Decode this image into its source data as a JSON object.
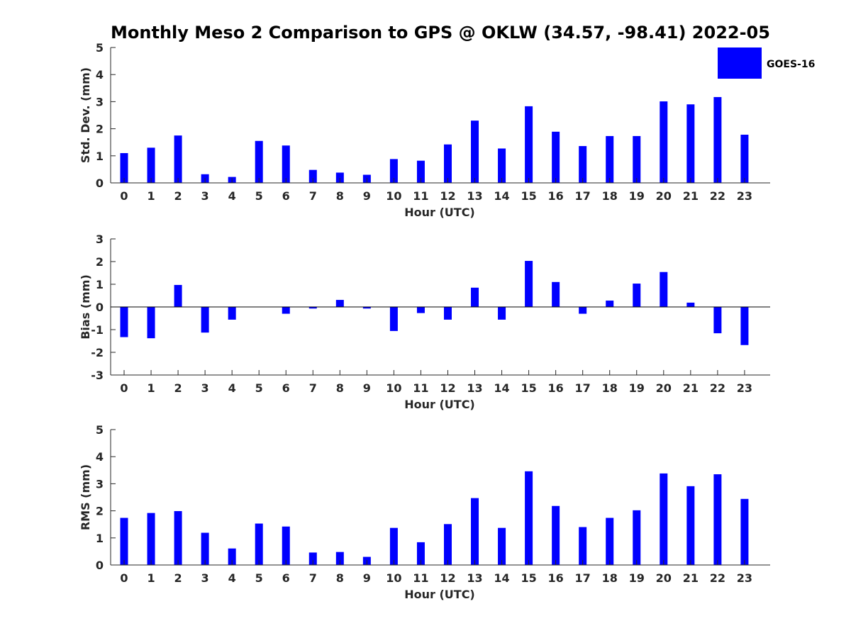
{
  "colors": {
    "bar": "#0000ff",
    "axis": "#262626",
    "background": "#ffffff"
  },
  "legend": {
    "label": "GOES-16"
  },
  "chart_data": [
    {
      "type": "bar",
      "title": "Monthly Meso 2 Comparison to GPS @ OKLW (34.57, -98.41) 2022-05",
      "xlabel": "Hour (UTC)",
      "ylabel": "Std. Dev. (mm)",
      "ylim": [
        0,
        5
      ],
      "yticks": [
        0,
        1,
        2,
        3,
        4,
        5
      ],
      "categories": [
        "0",
        "1",
        "2",
        "3",
        "4",
        "5",
        "6",
        "7",
        "8",
        "9",
        "10",
        "11",
        "12",
        "13",
        "14",
        "15",
        "16",
        "17",
        "18",
        "19",
        "20",
        "21",
        "22",
        "23"
      ],
      "series": [
        {
          "name": "GOES-16",
          "values": [
            1.1,
            1.3,
            1.75,
            0.32,
            0.22,
            1.55,
            1.38,
            0.48,
            0.38,
            0.3,
            0.88,
            0.82,
            1.42,
            2.3,
            1.27,
            2.83,
            1.89,
            1.36,
            1.73,
            1.73,
            3.01,
            2.9,
            3.17,
            1.78
          ]
        }
      ]
    },
    {
      "type": "bar",
      "title": "",
      "xlabel": "Hour (UTC)",
      "ylabel": "Bias (mm)",
      "ylim": [
        -3,
        3
      ],
      "yticks": [
        -3,
        -2,
        -1,
        0,
        1,
        2,
        3
      ],
      "zeroline": true,
      "categories": [
        "0",
        "1",
        "2",
        "3",
        "4",
        "5",
        "6",
        "7",
        "8",
        "9",
        "10",
        "11",
        "12",
        "13",
        "14",
        "15",
        "16",
        "17",
        "18",
        "19",
        "20",
        "21",
        "22",
        "23"
      ],
      "series": [
        {
          "name": "GOES-16",
          "values": [
            -1.33,
            -1.38,
            0.97,
            -1.13,
            -0.56,
            0.0,
            -0.3,
            -0.07,
            0.31,
            -0.07,
            -1.06,
            -0.27,
            -0.56,
            0.85,
            -0.56,
            2.03,
            1.1,
            -0.3,
            0.28,
            1.03,
            1.54,
            0.19,
            -1.16,
            -1.68
          ]
        }
      ]
    },
    {
      "type": "bar",
      "title": "",
      "xlabel": "Hour (UTC)",
      "ylabel": "RMS (mm)",
      "ylim": [
        0,
        5
      ],
      "yticks": [
        0,
        1,
        2,
        3,
        4,
        5
      ],
      "categories": [
        "0",
        "1",
        "2",
        "3",
        "4",
        "5",
        "6",
        "7",
        "8",
        "9",
        "10",
        "11",
        "12",
        "13",
        "14",
        "15",
        "16",
        "17",
        "18",
        "19",
        "20",
        "21",
        "22",
        "23"
      ],
      "series": [
        {
          "name": "GOES-16",
          "values": [
            1.74,
            1.92,
            1.99,
            1.19,
            0.61,
            1.53,
            1.42,
            0.46,
            0.48,
            0.3,
            1.37,
            0.84,
            1.51,
            2.47,
            1.37,
            3.46,
            2.18,
            1.4,
            1.74,
            2.02,
            3.38,
            2.91,
            3.35,
            2.44
          ]
        }
      ]
    }
  ]
}
